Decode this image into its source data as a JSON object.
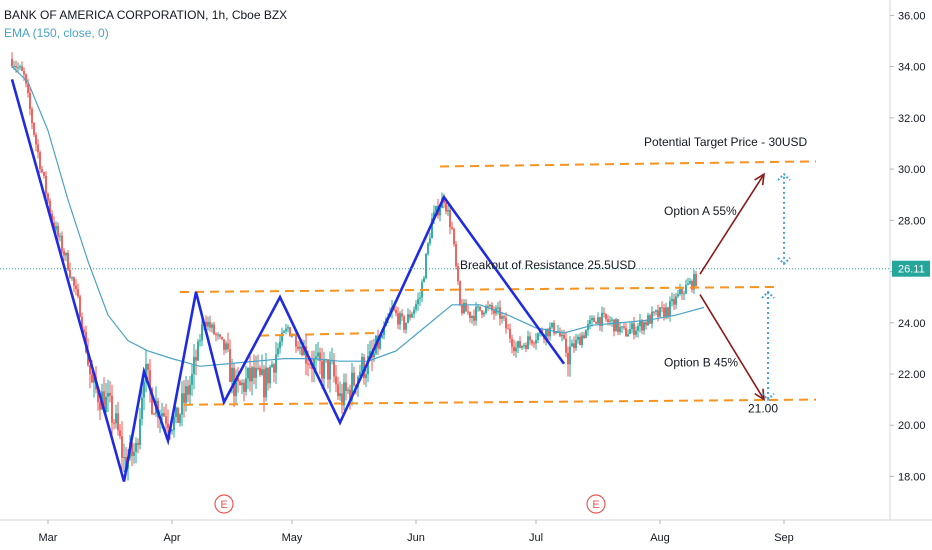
{
  "chart_data": {
    "type": "candlestick",
    "title": "BANK OF AMERICA CORPORATION, 1h, Cboe BZX",
    "indicator": "EMA (150, close, 0)",
    "ylim": [
      16.3,
      36.6
    ],
    "y_ticks": [
      "18.00",
      "20.00",
      "22.00",
      "24.00",
      "26.00",
      "28.00",
      "30.00",
      "32.00",
      "34.00",
      "36.00"
    ],
    "x_ticks": [
      "Mar",
      "Apr",
      "May",
      "Jun",
      "Jul",
      "Aug",
      "Sep"
    ],
    "last_price": "26.11",
    "price_path": [
      [
        "Feb 21",
        34.3
      ],
      [
        "Feb 24",
        33.6
      ],
      [
        "Feb 27",
        31.0
      ],
      [
        "Mar 2",
        28.0
      ],
      [
        "Mar 6",
        26.3
      ],
      [
        "Mar 9",
        24.5
      ],
      [
        "Mar 12",
        21.5
      ],
      [
        "Mar 16",
        20.8
      ],
      [
        "Mar 18",
        20.0
      ],
      [
        "Mar 20",
        18.6
      ],
      [
        "Mar 23",
        19.0
      ],
      [
        "Mar 25",
        22.2
      ],
      [
        "Mar 27",
        21.0
      ],
      [
        "Mar 31",
        20.3
      ],
      [
        "Apr 2",
        20.1
      ],
      [
        "Apr 6",
        21.8
      ],
      [
        "Apr 9",
        24.2
      ],
      [
        "Apr 14",
        23.0
      ],
      [
        "Apr 17",
        21.3
      ],
      [
        "Apr 21",
        21.9
      ],
      [
        "Apr 24",
        21.6
      ],
      [
        "Apr 28",
        23.2
      ],
      [
        "Apr 30",
        23.8
      ],
      [
        "May 4",
        22.9
      ],
      [
        "May 7",
        22.3
      ],
      [
        "May 11",
        22.1
      ],
      [
        "May 13",
        21.0
      ],
      [
        "May 15",
        21.3
      ],
      [
        "May 18",
        22.2
      ],
      [
        "May 21",
        22.5
      ],
      [
        "May 26",
        24.5
      ],
      [
        "May 29",
        23.9
      ],
      [
        "Jun 2",
        25.0
      ],
      [
        "Jun 5",
        28.0
      ],
      [
        "Jun 8",
        28.9
      ],
      [
        "Jun 10",
        27.6
      ],
      [
        "Jun 12",
        24.6
      ],
      [
        "Jun 15",
        24.3
      ],
      [
        "Jun 18",
        24.6
      ],
      [
        "Jun 22",
        24.3
      ],
      [
        "Jun 26",
        23.0
      ],
      [
        "Jun 30",
        23.4
      ],
      [
        "Jul 2",
        23.6
      ],
      [
        "Jul 6",
        23.8
      ],
      [
        "Jul 9",
        22.8
      ],
      [
        "Jul 13",
        23.6
      ],
      [
        "Jul 16",
        24.2
      ],
      [
        "Jul 20",
        24.0
      ],
      [
        "Jul 23",
        23.6
      ],
      [
        "Jul 27",
        23.9
      ],
      [
        "Jul 30",
        24.2
      ],
      [
        "Aug 3",
        24.5
      ],
      [
        "Aug 5",
        24.9
      ],
      [
        "Aug 7",
        25.3
      ],
      [
        "Aug 10",
        25.7
      ]
    ],
    "ema_150": [
      [
        "Feb 21",
        34.0
      ],
      [
        "Feb 25",
        33.4
      ],
      [
        "Mar 1",
        31.5
      ],
      [
        "Mar 6",
        28.8
      ],
      [
        "Mar 11",
        26.4
      ],
      [
        "Mar 16",
        24.3
      ],
      [
        "Mar 21",
        23.3
      ],
      [
        "Mar 26",
        22.9
      ],
      [
        "Apr 1",
        22.6
      ],
      [
        "Apr 8",
        22.3
      ],
      [
        "Apr 15",
        22.4
      ],
      [
        "Apr 22",
        22.5
      ],
      [
        "Apr 29",
        22.6
      ],
      [
        "May 6",
        22.6
      ],
      [
        "May 13",
        22.5
      ],
      [
        "May 20",
        22.5
      ],
      [
        "May 27",
        22.9
      ],
      [
        "Jun 3",
        23.8
      ],
      [
        "Jun 10",
        24.7
      ],
      [
        "Jun 17",
        24.7
      ],
      [
        "Jun 24",
        24.3
      ],
      [
        "Jul 1",
        23.8
      ],
      [
        "Jul 8",
        23.6
      ],
      [
        "Jul 15",
        23.9
      ],
      [
        "Jul 22",
        24.0
      ],
      [
        "Jul 29",
        24.1
      ],
      [
        "Aug 5",
        24.3
      ],
      [
        "Aug 12",
        24.6
      ]
    ],
    "wave_path": [
      [
        "Feb 21",
        33.5
      ],
      [
        "Mar 20",
        17.8
      ],
      [
        "Mar 25",
        22.1
      ],
      [
        "Mar 31",
        19.4
      ],
      [
        "Apr 7",
        25.2
      ],
      [
        "Apr 14",
        20.9
      ],
      [
        "Apr 28",
        25.0
      ],
      [
        "May 13",
        20.1
      ],
      [
        "Jun 8",
        28.9
      ],
      [
        "Jul 8",
        22.4
      ]
    ],
    "levels": [
      {
        "from": "Jun 7",
        "to": "Sep 9",
        "y": [
          30.1,
          30.3
        ]
      },
      {
        "from": "Apr 3",
        "to": "Aug 31",
        "y": [
          25.2,
          25.4
        ]
      },
      {
        "from": "Apr 23",
        "to": "May 22",
        "y": [
          23.5,
          23.6
        ]
      },
      {
        "from": "Apr 4",
        "to": "Sep 9",
        "y": [
          20.8,
          21.0
        ]
      }
    ],
    "arrows": [
      {
        "from": [
          "Aug 11",
          25.9
        ],
        "to": [
          "Aug 27",
          29.8
        ]
      },
      {
        "from": [
          "Aug 11",
          25.1
        ],
        "to": [
          "Aug 27",
          21.0
        ]
      }
    ],
    "dotted_ranges": [
      {
        "x": "Sep 1",
        "from": 26.3,
        "to": 29.8
      },
      {
        "x": "Aug 28",
        "from": 25.2,
        "to": 21.0
      }
    ],
    "annotations": [
      {
        "text": "Potential Target Price - 30USD",
        "x": "Jul 28",
        "y": 30.9
      },
      {
        "text": "Option A 55%",
        "x": "Aug 2",
        "y": 28.2
      },
      {
        "text": "Breakout of Resistance 25.5USD",
        "x": "Jun 12",
        "y": 26.1
      },
      {
        "text": "Option B 45%",
        "x": "Aug 2",
        "y": 22.3
      },
      {
        "text": "21.00",
        "x": "Aug 23",
        "y": 20.5
      }
    ],
    "earnings_markers": [
      {
        "label": "E",
        "x": "Apr 14"
      },
      {
        "label": "E",
        "x": "Jul 16"
      }
    ],
    "colors": {
      "up": "#26a69a",
      "down": "#ef5350",
      "ema": "#4aa3c7",
      "wave": "#1f2be0",
      "level": "#f7931e",
      "arrow": "#8b1a1a",
      "dotted": "#4aa3df",
      "price_line": "#26a69a",
      "earnings": "#ef5350",
      "axis_text": "#131722"
    }
  }
}
